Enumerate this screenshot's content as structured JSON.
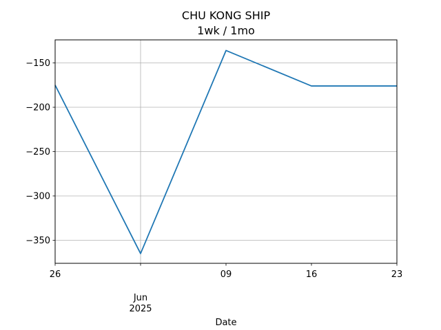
{
  "chart_data": {
    "type": "line",
    "title": "CHU KONG SHIP",
    "subtitle": "1wk / 1mo",
    "xlabel": "Date",
    "ylabel": "",
    "x": [
      "2025-05-26",
      "2025-06-02",
      "2025-06-09",
      "2025-06-16",
      "2025-06-23"
    ],
    "x_tick_labels": [
      "26",
      "",
      "09",
      "16",
      "23"
    ],
    "x_secondary_label": [
      "Jun",
      "2025"
    ],
    "series": [
      {
        "values": [
          -175,
          -365,
          -136,
          -176,
          -176
        ],
        "color": "#1f77b4"
      }
    ],
    "ylim": [
      -376,
      -124
    ],
    "yticks": [
      -150,
      -200,
      -250,
      -300,
      -350
    ],
    "ytick_labels": [
      "−150",
      "−200",
      "−250",
      "−300",
      "−350"
    ],
    "grid": true
  }
}
